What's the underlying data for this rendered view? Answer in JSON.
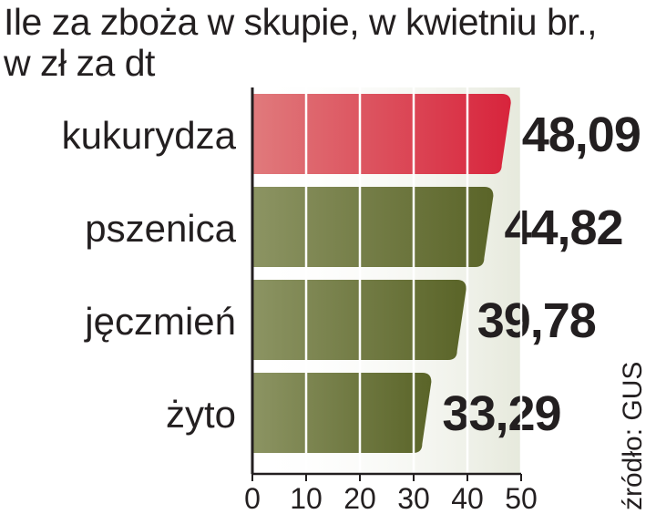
{
  "chart_data": {
    "type": "bar",
    "orientation": "horizontal",
    "title": "Ile za zboża w skupie, w kwietniu br.,",
    "subtitle": "w zł za dt",
    "categories": [
      "kukurydza",
      "pszenica",
      "jęczmień",
      "żyto"
    ],
    "values": [
      48.09,
      44.82,
      39.78,
      33.29
    ],
    "value_labels": [
      "48,09",
      "44,82",
      "39,78",
      "33,29"
    ],
    "xticks": [
      "0",
      "10",
      "20",
      "30",
      "40",
      "50"
    ],
    "xlim": [
      0,
      50
    ],
    "grid": true,
    "source": "źródło: GUS",
    "colors": {
      "highlight": "#d8243c",
      "highlight_light": "#e07a7c",
      "bar": "#5a6428",
      "bar_light": "#8c9463",
      "panel": "#e6e9dc",
      "axis": "#231f20"
    }
  }
}
